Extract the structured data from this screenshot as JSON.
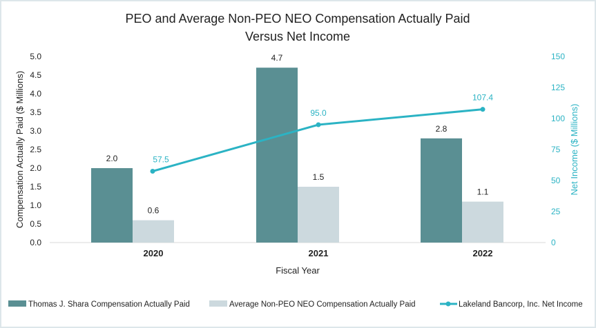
{
  "chart_data": {
    "type": "bar",
    "title_line1": "PEO and Average Non-PEO NEO Compensation Actually Paid",
    "title_line2": "Versus Net Income",
    "xlabel": "Fiscal Year",
    "ylabel": "Compensation Actually Paid ($ Millions)",
    "y2label": "Net Income ($ Millions)",
    "categories": [
      "2020",
      "2021",
      "2022"
    ],
    "ylim": [
      0,
      5
    ],
    "yticks": [
      "0.0",
      "0.5",
      "1.0",
      "1.5",
      "2.0",
      "2.5",
      "3.0",
      "3.5",
      "4.0",
      "4.5",
      "5.0"
    ],
    "y2lim": [
      0,
      150
    ],
    "y2ticks": [
      "0",
      "25",
      "50",
      "75",
      "100",
      "125",
      "150"
    ],
    "grid": false,
    "legend_position": "bottom",
    "series": [
      {
        "name": "Thomas J. Shara Compensation Actually Paid",
        "type": "bar",
        "axis": "left",
        "color": "#5a8f93",
        "values": [
          2.0,
          4.7,
          2.8
        ],
        "labels": [
          "2.0",
          "4.7",
          "2.8"
        ]
      },
      {
        "name": "Average Non-PEO NEO Compensation Actually Paid",
        "type": "bar",
        "axis": "left",
        "color": "#ccd9de",
        "values": [
          0.6,
          1.5,
          1.1
        ],
        "labels": [
          "0.6",
          "1.5",
          "1.1"
        ]
      },
      {
        "name": "Lakeland Bancorp, Inc. Net Income",
        "type": "line",
        "axis": "right",
        "color": "#2bb3c4",
        "values": [
          57.5,
          95.0,
          107.4
        ],
        "labels": [
          "57.5",
          "95.0",
          "107.4"
        ]
      }
    ]
  }
}
